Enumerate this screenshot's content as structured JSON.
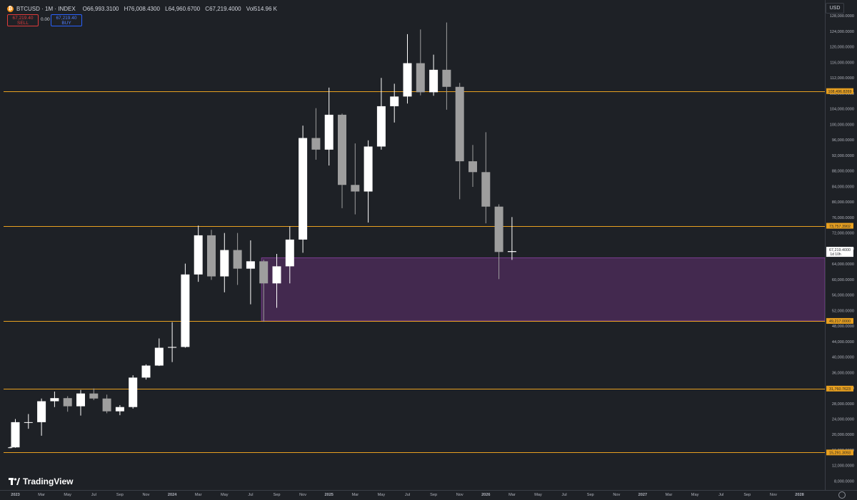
{
  "header": {
    "symbol": "BTCUSD · 1M · INDEX",
    "open": "O66,993.3100",
    "high": "H76,008.4300",
    "low": "L64,960.6700",
    "close": "C67,219.4000",
    "volume": "Vol514.96 K",
    "coin_glyph": "₿"
  },
  "trade": {
    "sell_price": "67,219.40",
    "sell_label": "SELL",
    "spread": "0.00",
    "buy_price": "67,219.40",
    "buy_label": "BUY"
  },
  "currency": "USD",
  "brand": "TradingView",
  "icons": {
    "coin": "bitcoin-icon",
    "logo": "tradingview-logo",
    "settings": "gear-icon"
  },
  "colors": {
    "background": "#1e2126",
    "candle_up": "#ffffff",
    "candle_down": "#9e9e9e",
    "level_line": "#e8a020",
    "zone_fill": "#43294f",
    "zone_border": "#7a3d8f"
  },
  "chart_data": {
    "type": "candlestick",
    "interval": "1M",
    "y_range": [
      5600,
      132000
    ],
    "y_ticks": [
      8000,
      12000,
      16000,
      20000,
      24000,
      28000,
      32000,
      36000,
      40000,
      44000,
      48000,
      52000,
      56000,
      60000,
      64000,
      68000,
      72000,
      76000,
      80000,
      84000,
      88000,
      92000,
      96000,
      100000,
      104000,
      108000,
      112000,
      116000,
      120000,
      124000,
      128000
    ],
    "y_tick_labels": [
      "8,000.0000",
      "12,000.0000",
      "16,000.0000",
      "20,000.0000",
      "24,000.0000",
      "28,000.0000",
      "32,000.0000",
      "36,000.0000",
      "40,000.0000",
      "44,000.0000",
      "48,000.0000",
      "52,000.0000",
      "56,000.0000",
      "60,000.0000",
      "64,000.0000",
      "68,000.0000",
      "72,000.0000",
      "76,000.0000",
      "80,000.0000",
      "84,000.0000",
      "88,000.0000",
      "92,000.0000",
      "96,000.0000",
      "100,000.0000",
      "104,000.0000",
      "108,000.0000",
      "112,000.0000",
      "116,000.0000",
      "120,000.0000",
      "124,000.0000",
      "128,000.0000"
    ],
    "x_range": [
      -0.5,
      61.5
    ],
    "x_ticks": [
      {
        "x": 0,
        "label": "2023",
        "bold": true
      },
      {
        "x": 2,
        "label": "Mar"
      },
      {
        "x": 4,
        "label": "May"
      },
      {
        "x": 6,
        "label": "Jul"
      },
      {
        "x": 8,
        "label": "Sep"
      },
      {
        "x": 10,
        "label": "Nov"
      },
      {
        "x": 12,
        "label": "2024",
        "bold": true
      },
      {
        "x": 14,
        "label": "Mar"
      },
      {
        "x": 16,
        "label": "May"
      },
      {
        "x": 18,
        "label": "Jul"
      },
      {
        "x": 20,
        "label": "Sep"
      },
      {
        "x": 22,
        "label": "Nov"
      },
      {
        "x": 24,
        "label": "2025",
        "bold": true
      },
      {
        "x": 26,
        "label": "Mar"
      },
      {
        "x": 28,
        "label": "May"
      },
      {
        "x": 30,
        "label": "Jul"
      },
      {
        "x": 32,
        "label": "Sep"
      },
      {
        "x": 34,
        "label": "Nov"
      },
      {
        "x": 36,
        "label": "2026",
        "bold": true
      },
      {
        "x": 38,
        "label": "Mar"
      },
      {
        "x": 40,
        "label": "May"
      },
      {
        "x": 42,
        "label": "Jul"
      },
      {
        "x": 44,
        "label": "Sep"
      },
      {
        "x": 46,
        "label": "Nov"
      },
      {
        "x": 48,
        "label": "2027",
        "bold": true
      },
      {
        "x": 50,
        "label": "Mar"
      },
      {
        "x": 52,
        "label": "May"
      },
      {
        "x": 54,
        "label": "Jul"
      },
      {
        "x": 56,
        "label": "Sep"
      },
      {
        "x": 58,
        "label": "Nov"
      },
      {
        "x": 60,
        "label": "2028",
        "bold": true
      }
    ],
    "candles": [
      {
        "t": -0.4,
        "o": 16540,
        "h": 16800,
        "l": 16400,
        "c": 16600
      },
      {
        "t": 0,
        "o": 16600,
        "h": 23900,
        "l": 16500,
        "c": 23100
      },
      {
        "t": 1,
        "o": 23100,
        "h": 25200,
        "l": 21400,
        "c": 23100
      },
      {
        "t": 2,
        "o": 23100,
        "h": 29200,
        "l": 19600,
        "c": 28500
      },
      {
        "t": 3,
        "o": 28500,
        "h": 31000,
        "l": 27000,
        "c": 29300
      },
      {
        "t": 4,
        "o": 29300,
        "h": 29800,
        "l": 25800,
        "c": 27200
      },
      {
        "t": 5,
        "o": 27200,
        "h": 31400,
        "l": 24800,
        "c": 30500
      },
      {
        "t": 6,
        "o": 30500,
        "h": 31800,
        "l": 28800,
        "c": 29200
      },
      {
        "t": 7,
        "o": 29200,
        "h": 30200,
        "l": 25400,
        "c": 25900
      },
      {
        "t": 8,
        "o": 25900,
        "h": 27500,
        "l": 24900,
        "c": 27000
      },
      {
        "t": 9,
        "o": 27000,
        "h": 35200,
        "l": 26600,
        "c": 34600
      },
      {
        "t": 10,
        "o": 34600,
        "h": 38000,
        "l": 34100,
        "c": 37700
      },
      {
        "t": 11,
        "o": 37700,
        "h": 44700,
        "l": 37600,
        "c": 42300
      },
      {
        "t": 12,
        "o": 42300,
        "h": 48900,
        "l": 38600,
        "c": 42500
      },
      {
        "t": 13,
        "o": 42500,
        "h": 64000,
        "l": 42300,
        "c": 61200
      },
      {
        "t": 14,
        "o": 61200,
        "h": 73800,
        "l": 59300,
        "c": 71300
      },
      {
        "t": 15,
        "o": 71300,
        "h": 72700,
        "l": 59800,
        "c": 60700
      },
      {
        "t": 16,
        "o": 60700,
        "h": 71900,
        "l": 56600,
        "c": 67500
      },
      {
        "t": 17,
        "o": 67500,
        "h": 71900,
        "l": 58500,
        "c": 62700
      },
      {
        "t": 18,
        "o": 62700,
        "h": 70000,
        "l": 53500,
        "c": 64600
      },
      {
        "t": 19,
        "o": 64600,
        "h": 65000,
        "l": 49000,
        "c": 58900
      },
      {
        "t": 20,
        "o": 58900,
        "h": 66500,
        "l": 52600,
        "c": 63300
      },
      {
        "t": 21,
        "o": 63300,
        "h": 73600,
        "l": 58900,
        "c": 70200
      },
      {
        "t": 22,
        "o": 70200,
        "h": 99600,
        "l": 66800,
        "c": 96400
      },
      {
        "t": 23,
        "o": 96400,
        "h": 104100,
        "l": 90800,
        "c": 93400
      },
      {
        "t": 24,
        "o": 93400,
        "h": 109400,
        "l": 89300,
        "c": 102400
      },
      {
        "t": 25,
        "o": 102400,
        "h": 102700,
        "l": 78300,
        "c": 84300
      },
      {
        "t": 26,
        "o": 84300,
        "h": 95000,
        "l": 76700,
        "c": 82600
      },
      {
        "t": 27,
        "o": 82600,
        "h": 95800,
        "l": 74600,
        "c": 94200
      },
      {
        "t": 28,
        "o": 94200,
        "h": 111900,
        "l": 93400,
        "c": 104600
      },
      {
        "t": 29,
        "o": 104600,
        "h": 110400,
        "l": 100400,
        "c": 107100
      },
      {
        "t": 30,
        "o": 107100,
        "h": 123200,
        "l": 105300,
        "c": 115700
      },
      {
        "t": 31,
        "o": 115700,
        "h": 124400,
        "l": 107400,
        "c": 108200
      },
      {
        "t": 32,
        "o": 108200,
        "h": 117900,
        "l": 107300,
        "c": 114000
      },
      {
        "t": 33,
        "o": 114000,
        "h": 126200,
        "l": 103700,
        "c": 109600
      },
      {
        "t": 34,
        "o": 109600,
        "h": 110600,
        "l": 80600,
        "c": 90400
      },
      {
        "t": 35,
        "o": 90400,
        "h": 94600,
        "l": 83800,
        "c": 87600
      },
      {
        "t": 36,
        "o": 87600,
        "h": 97900,
        "l": 74400,
        "c": 78700
      },
      {
        "t": 37,
        "o": 78700,
        "h": 79300,
        "l": 60000,
        "c": 67000
      },
      {
        "t": 38,
        "o": 66993,
        "h": 76008,
        "l": 64961,
        "c": 67219
      }
    ],
    "levels": [
      {
        "name": "resistance-level-108",
        "price": 108496.8269,
        "label": "108,496.8269"
      },
      {
        "name": "resistance-level-73",
        "price": 73757.3902,
        "label": "73,757.3902"
      },
      {
        "name": "support-level-49",
        "price": 49217.0,
        "label": "49,217.0000"
      },
      {
        "name": "support-level-31",
        "price": 31760.7623,
        "label": "31,760.7623"
      },
      {
        "name": "support-level-15",
        "price": 15291.3093,
        "label": "15,291.3093"
      }
    ],
    "zone": {
      "name": "demand-zone",
      "x_start": 19.0,
      "x_end": 61.5,
      "top": 65500,
      "bottom": 49217
    },
    "last_price": {
      "price": 67219.4,
      "label": "67,219.4000",
      "countdown": "1d 10h"
    }
  }
}
